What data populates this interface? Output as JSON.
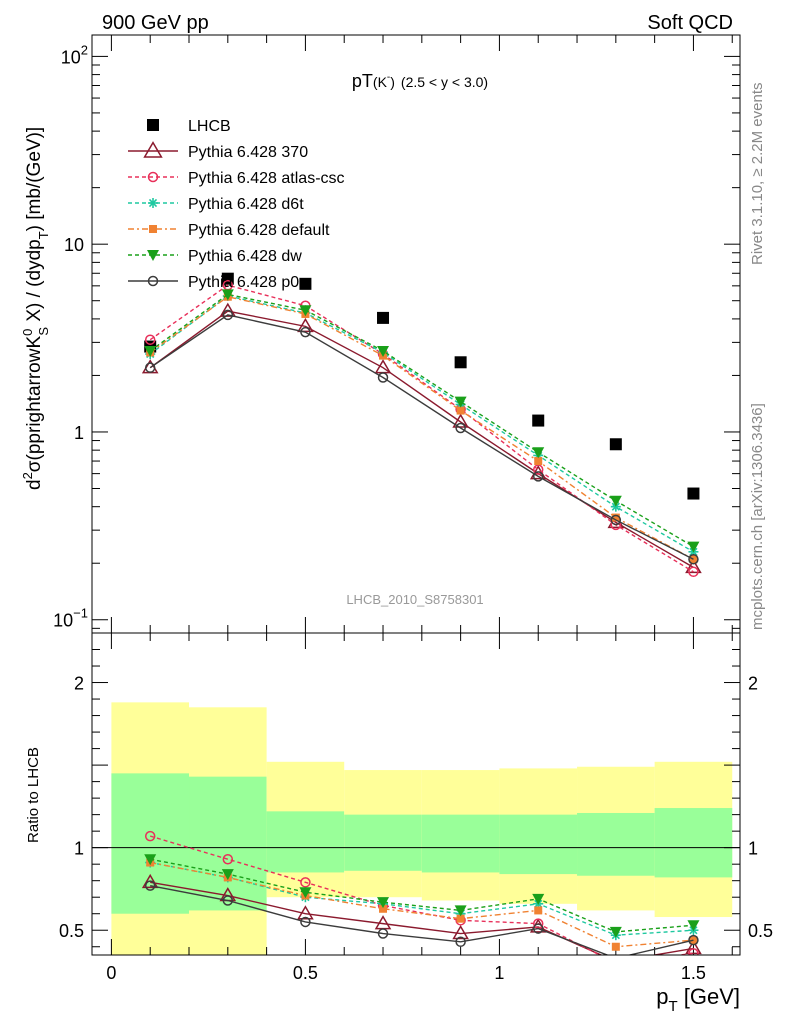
{
  "header": {
    "left": "900 GeV pp",
    "right": "Soft QCD"
  },
  "side": {
    "rivet": "Rivet 3.1.10, ≥ 2.2M events",
    "source": "mcplots.cern.ch [arXiv:1306.3436]"
  },
  "chart_data": [
    {
      "type": "line",
      "title_main": "pT",
      "title_sub": "(K",
      "title_sup": "-",
      "title_sub_end": ")",
      "title_range": "(2.5 < y < 3.0)",
      "watermark": "LHCB_2010_S8758301",
      "ylabel": "d²σ(pprightarrowK⁰S X) / (dydpT) [mb/(GeV)]",
      "ylabel_parts": {
        "d": "d",
        "d_sup": "2",
        "mid": "σ(pprightarrowK",
        "k_sup": "0",
        "k_sub": "S",
        "tail": " X) / (dydp",
        "t_sub": "T",
        "end": ") [mb/(GeV)]"
      },
      "yscale": "log",
      "ylim": [
        0.085,
        130
      ],
      "xlim": [
        -0.05,
        1.62
      ],
      "yticks": [
        {
          "value": 0.1,
          "label": "10",
          "sup": "−1"
        },
        {
          "value": 1,
          "label": "1",
          "sup": ""
        },
        {
          "value": 10,
          "label": "10",
          "sup": ""
        },
        {
          "value": 100,
          "label": "10",
          "sup": "2"
        }
      ],
      "x": [
        0.1,
        0.3,
        0.5,
        0.7,
        0.9,
        1.1,
        1.3,
        1.5
      ],
      "series": [
        {
          "name": "LHCB",
          "color": "#000000",
          "marker": "square",
          "dash": "none",
          "values": [
            2.85,
            6.55,
            6.15,
            4.05,
            2.35,
            1.15,
            0.86,
            0.47
          ]
        },
        {
          "name": "Pythia 6.428 370",
          "color": "#8b1a2e",
          "marker": "triangle-open",
          "dash": "solid",
          "values": [
            2.2,
            4.4,
            3.65,
            2.2,
            1.13,
            0.6,
            0.33,
            0.19
          ]
        },
        {
          "name": "Pythia 6.428 atlas-csc",
          "color": "#e8305a",
          "marker": "circle-open",
          "dash": "4,3",
          "values": [
            3.1,
            6.05,
            4.7,
            2.6,
            1.32,
            0.63,
            0.32,
            0.18
          ]
        },
        {
          "name": "Pythia 6.428 d6t",
          "color": "#1ec8a0",
          "marker": "star",
          "dash": "4,3",
          "values": [
            2.6,
            5.3,
            4.3,
            2.65,
            1.4,
            0.75,
            0.4,
            0.23
          ]
        },
        {
          "name": "Pythia 6.428 default",
          "color": "#f08232",
          "marker": "square-small",
          "dash": "6,3,2,3",
          "values": [
            2.65,
            5.25,
            4.25,
            2.55,
            1.3,
            0.7,
            0.35,
            0.21
          ]
        },
        {
          "name": "Pythia 6.428 dw",
          "color": "#1aa01a",
          "marker": "triangle-down",
          "dash": "4,3",
          "values": [
            2.7,
            5.4,
            4.45,
            2.7,
            1.45,
            0.78,
            0.43,
            0.245
          ]
        },
        {
          "name": "Pythia 6.428 p0",
          "color": "#3c3c3c",
          "marker": "circle-open",
          "dash": "solid",
          "values": [
            2.2,
            4.2,
            3.4,
            1.95,
            1.05,
            0.58,
            0.34,
            0.21
          ]
        }
      ]
    },
    {
      "type": "line",
      "ylabel": "Ratio to LHCB",
      "xlabel": "p",
      "xlabel_sub": "T",
      "xlabel_unit": " [GeV]",
      "ylim": [
        0.35,
        2.3
      ],
      "xlim": [
        -0.05,
        1.62
      ],
      "yticks": [
        {
          "value": 0.5,
          "label": "0.5"
        },
        {
          "value": 1,
          "label": "1"
        },
        {
          "value": 2,
          "label": "2"
        }
      ],
      "xticks": [
        {
          "value": 0,
          "label": "0"
        },
        {
          "value": 0.5,
          "label": "0.5"
        },
        {
          "value": 1,
          "label": "1"
        },
        {
          "value": 1.5,
          "label": "1.5"
        }
      ],
      "bands": [
        {
          "x0": 0.0,
          "x1": 0.2,
          "yellow": [
            0.3,
            1.88
          ],
          "green": [
            0.6,
            1.45
          ]
        },
        {
          "x0": 0.2,
          "x1": 0.4,
          "yellow": [
            0.3,
            1.85
          ],
          "green": [
            0.62,
            1.43
          ]
        },
        {
          "x0": 0.4,
          "x1": 0.6,
          "yellow": [
            0.7,
            1.52
          ],
          "green": [
            0.85,
            1.22
          ]
        },
        {
          "x0": 0.6,
          "x1": 0.8,
          "yellow": [
            0.7,
            1.47
          ],
          "green": [
            0.86,
            1.2
          ]
        },
        {
          "x0": 0.8,
          "x1": 1.0,
          "yellow": [
            0.68,
            1.47
          ],
          "green": [
            0.85,
            1.2
          ]
        },
        {
          "x0": 1.0,
          "x1": 1.2,
          "yellow": [
            0.66,
            1.48
          ],
          "green": [
            0.84,
            1.2
          ]
        },
        {
          "x0": 1.2,
          "x1": 1.4,
          "yellow": [
            0.62,
            1.49
          ],
          "green": [
            0.83,
            1.21
          ]
        },
        {
          "x0": 1.4,
          "x1": 1.6,
          "yellow": [
            0.58,
            1.52
          ],
          "green": [
            0.82,
            1.24
          ]
        }
      ],
      "x": [
        0.1,
        0.3,
        0.5,
        0.7,
        0.9,
        1.1,
        1.3,
        1.5
      ],
      "series": [
        {
          "name": "Pythia 6.428 370",
          "color": "#8b1a2e",
          "marker": "triangle-open",
          "dash": "solid",
          "values": [
            0.79,
            0.71,
            0.6,
            0.54,
            0.48,
            0.52,
            0.31,
            0.39
          ]
        },
        {
          "name": "Pythia 6.428 atlas-csc",
          "color": "#e8305a",
          "marker": "circle-open",
          "dash": "4,3",
          "values": [
            1.07,
            0.93,
            0.79,
            0.65,
            0.56,
            0.54,
            0.3,
            0.36
          ]
        },
        {
          "name": "Pythia 6.428 d6t",
          "color": "#1ec8a0",
          "marker": "star",
          "dash": "4,3",
          "values": [
            0.91,
            0.82,
            0.7,
            0.66,
            0.6,
            0.66,
            0.47,
            0.5
          ]
        },
        {
          "name": "Pythia 6.428 default",
          "color": "#f08232",
          "marker": "square-small",
          "dash": "6,3,2,3",
          "values": [
            0.91,
            0.82,
            0.71,
            0.63,
            0.57,
            0.62,
            0.4,
            0.44
          ]
        },
        {
          "name": "Pythia 6.428 dw",
          "color": "#1aa01a",
          "marker": "triangle-down",
          "dash": "4,3",
          "values": [
            0.93,
            0.84,
            0.73,
            0.67,
            0.62,
            0.69,
            0.49,
            0.53
          ]
        },
        {
          "name": "Pythia 6.428 p0",
          "color": "#3c3c3c",
          "marker": "circle-open",
          "dash": "solid",
          "values": [
            0.77,
            0.68,
            0.55,
            0.48,
            0.43,
            0.51,
            0.33,
            0.44
          ]
        }
      ]
    }
  ]
}
